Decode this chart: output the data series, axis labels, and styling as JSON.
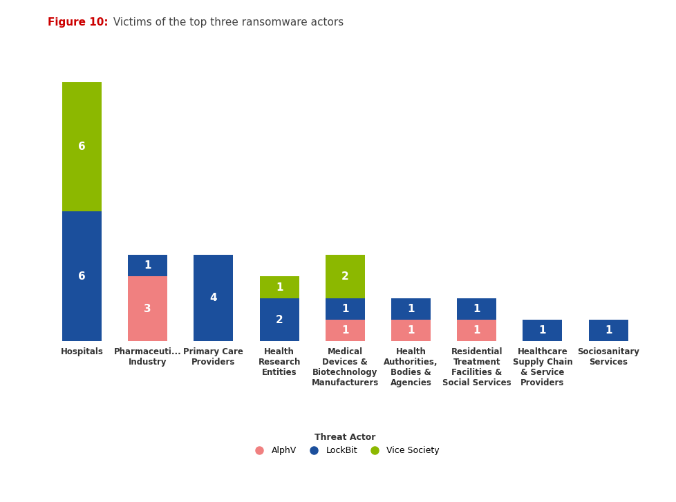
{
  "title_bold": "Figure 10:",
  "title_rest": " Victims of the top three ransomware actors",
  "categories": [
    "Hospitals",
    "Pharmaceuti...\nIndustry",
    "Primary Care\nProviders",
    "Health\nResearch\nEntities",
    "Medical\nDevices &\nBiotechnology\nManufacturers",
    "Health\nAuthorities,\nBodies &\nAgencies",
    "Residential\nTreatment\nFacilities &\nSocial Services",
    "Healthcare\nSupply Chain\n& Service\nProviders",
    "Sociosanitary\nServices"
  ],
  "alphv": [
    0,
    3,
    0,
    0,
    1,
    1,
    1,
    0,
    0
  ],
  "lockbit": [
    6,
    1,
    4,
    2,
    1,
    1,
    1,
    1,
    1
  ],
  "vice_society": [
    6,
    0,
    0,
    1,
    2,
    0,
    0,
    0,
    0
  ],
  "color_alphv": "#F08080",
  "color_lockbit": "#1B4F9C",
  "color_vice": "#8CB800",
  "background": "#FFFFFF",
  "label_alphv": "AlphV",
  "label_lockbit": "LockBit",
  "label_vice": "Vice Society",
  "legend_title": "Threat Actor",
  "title_color_bold": "#CC0000",
  "title_color_rest": "#444444",
  "bar_width": 0.6,
  "ylim": [
    0,
    13
  ],
  "label_fontsize": 11,
  "tick_fontsize": 8.5,
  "title_fontsize": 11
}
